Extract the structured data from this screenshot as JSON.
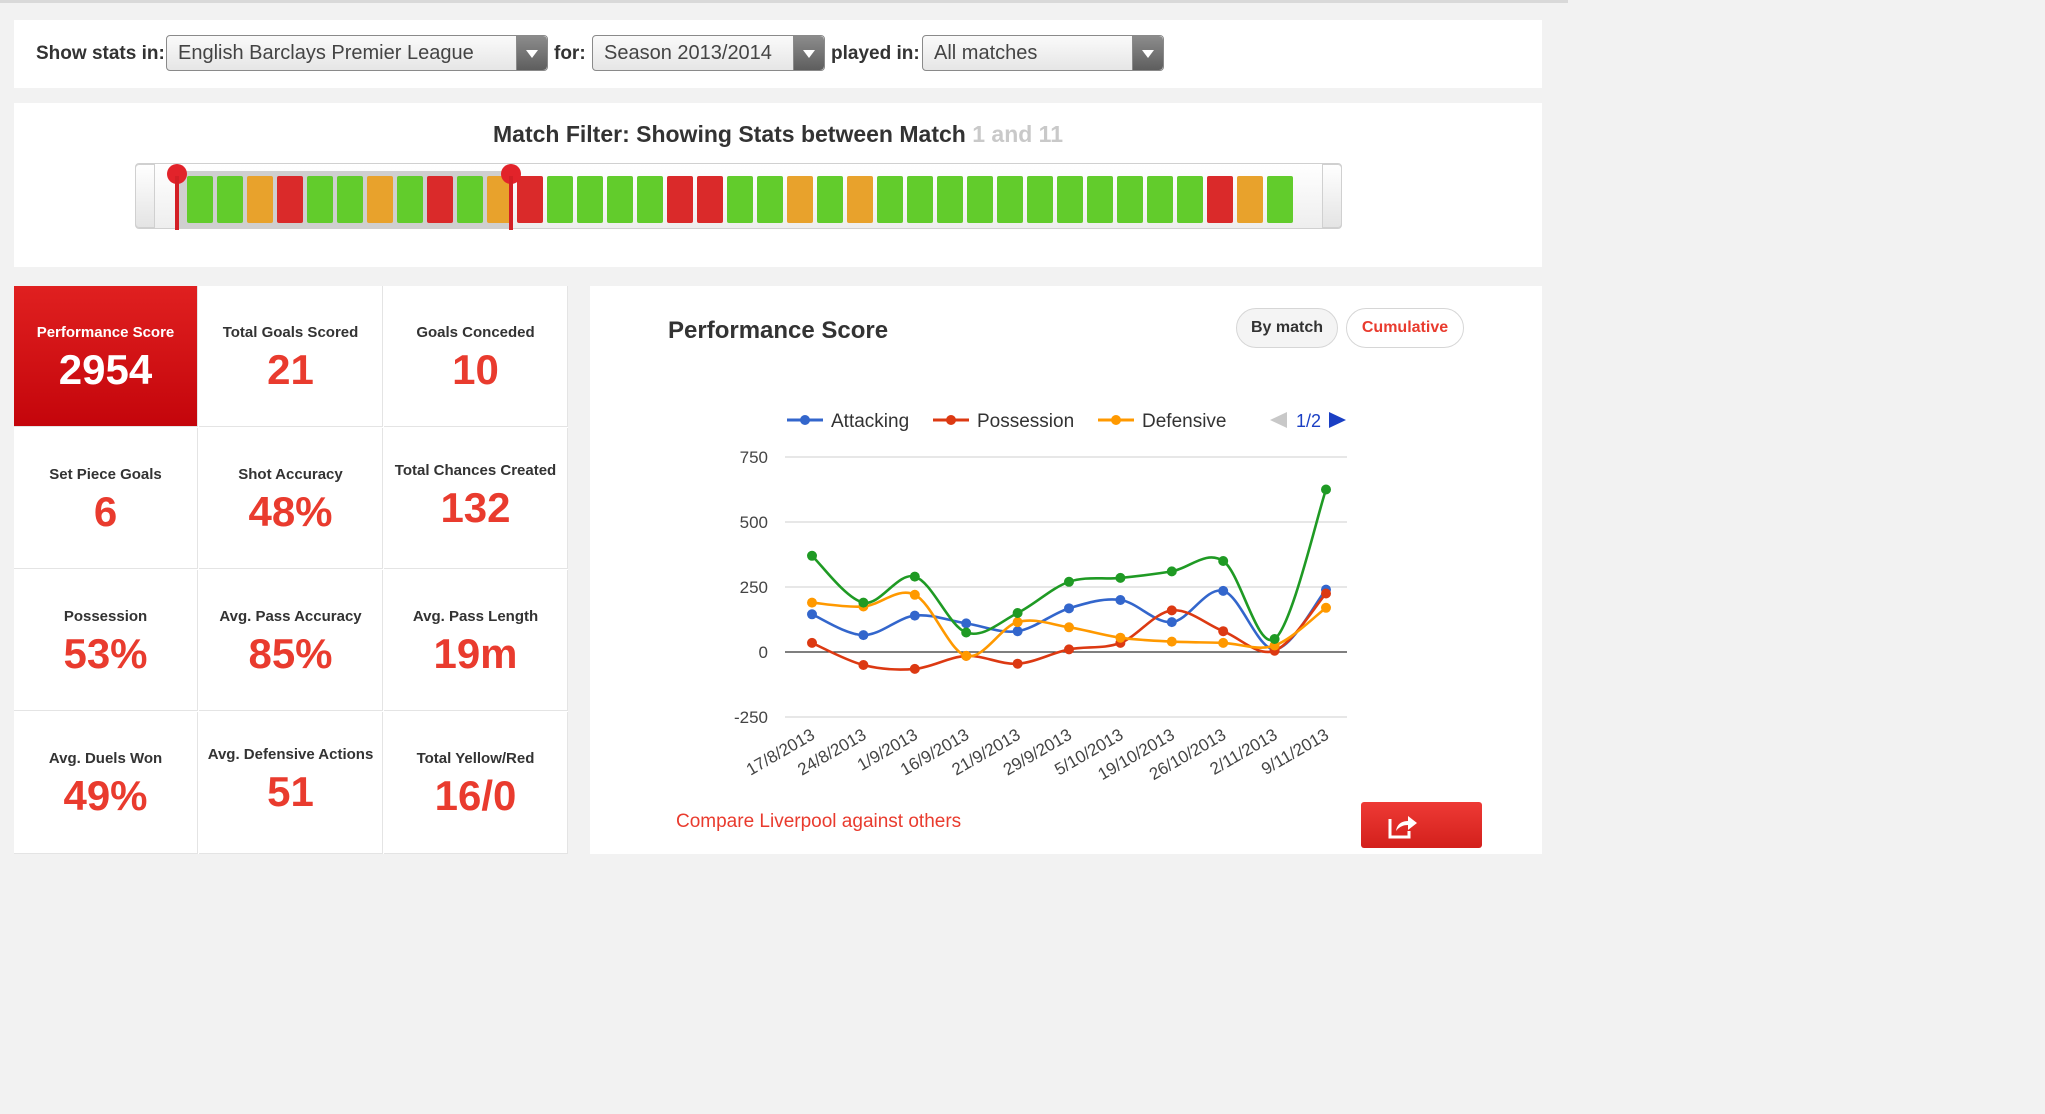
{
  "filters": {
    "show_stats_label": "Show stats in:",
    "competition": "English Barclays Premier League",
    "for_label": "for:",
    "season": "Season 2013/2014",
    "played_in_label": "played in:",
    "venue": "All matches"
  },
  "match_filter": {
    "title_prefix": "Match Filter: Showing Stats between Match",
    "range_text": "1 and 11",
    "selected_from_match": 1,
    "selected_to_match": 11,
    "match_results": [
      "G",
      "G",
      "O",
      "R",
      "G",
      "G",
      "O",
      "G",
      "R",
      "G",
      "O",
      "R",
      "G",
      "G",
      "G",
      "G",
      "R",
      "R",
      "G",
      "G",
      "O",
      "G",
      "O",
      "G",
      "G",
      "G",
      "G",
      "G",
      "G",
      "G",
      "G",
      "G",
      "G",
      "G",
      "R",
      "O",
      "G"
    ]
  },
  "stats": [
    {
      "label": "Performance Score",
      "value": "2954"
    },
    {
      "label": "Total Goals Scored",
      "value": "21"
    },
    {
      "label": "Goals Conceded",
      "value": "10"
    },
    {
      "label": "Set Piece Goals",
      "value": "6"
    },
    {
      "label": "Shot Accuracy",
      "value": "48%"
    },
    {
      "label": "Total Chances Created",
      "value": "132"
    },
    {
      "label": "Possession",
      "value": "53%"
    },
    {
      "label": "Avg. Pass Accuracy",
      "value": "85%"
    },
    {
      "label": "Avg. Pass Length",
      "value": "19m"
    },
    {
      "label": "Avg. Duels Won",
      "value": "49%"
    },
    {
      "label": "Avg. Defensive Actions",
      "value": "51"
    },
    {
      "label": "Total Yellow/Red",
      "value": "16/0"
    }
  ],
  "chart_panel": {
    "title": "Performance Score",
    "by_match_label": "By match",
    "cumulative_label": "Cumulative",
    "legend_page": "1/2",
    "compare_link": "Compare Liverpool against others"
  },
  "colors": {
    "accent_red": "#e93b2e",
    "green": "#62cc2c",
    "orange": "#e8a22c",
    "red": "#da2a2a",
    "attacking": "#3366cc",
    "possession": "#dc3912",
    "defensive": "#ff9900",
    "total": "#1f9a24"
  },
  "chart_data": {
    "type": "line",
    "x": [
      "17/8/2013",
      "24/8/2013",
      "1/9/2013",
      "16/9/2013",
      "21/9/2013",
      "29/9/2013",
      "5/10/2013",
      "19/10/2013",
      "26/10/2013",
      "2/11/2013",
      "9/11/2013"
    ],
    "series": [
      {
        "name": "Attacking",
        "color": "#3366cc",
        "values": [
          145,
          65,
          140,
          110,
          80,
          168,
          200,
          115,
          235,
          10,
          240
        ]
      },
      {
        "name": "Possession",
        "color": "#dc3912",
        "values": [
          35,
          -50,
          -65,
          -15,
          -45,
          10,
          35,
          160,
          80,
          5,
          225
        ]
      },
      {
        "name": "Defensive",
        "color": "#ff9900",
        "values": [
          190,
          175,
          220,
          -15,
          115,
          95,
          55,
          40,
          35,
          25,
          170
        ]
      },
      {
        "name": "",
        "color": "#1f9a24",
        "values": [
          370,
          190,
          290,
          75,
          150,
          270,
          285,
          310,
          350,
          50,
          625
        ]
      }
    ],
    "y_ticks": [
      -250,
      0,
      250,
      500,
      750
    ],
    "ylim": [
      -250,
      750
    ],
    "grid": true,
    "legend_position": "top"
  }
}
